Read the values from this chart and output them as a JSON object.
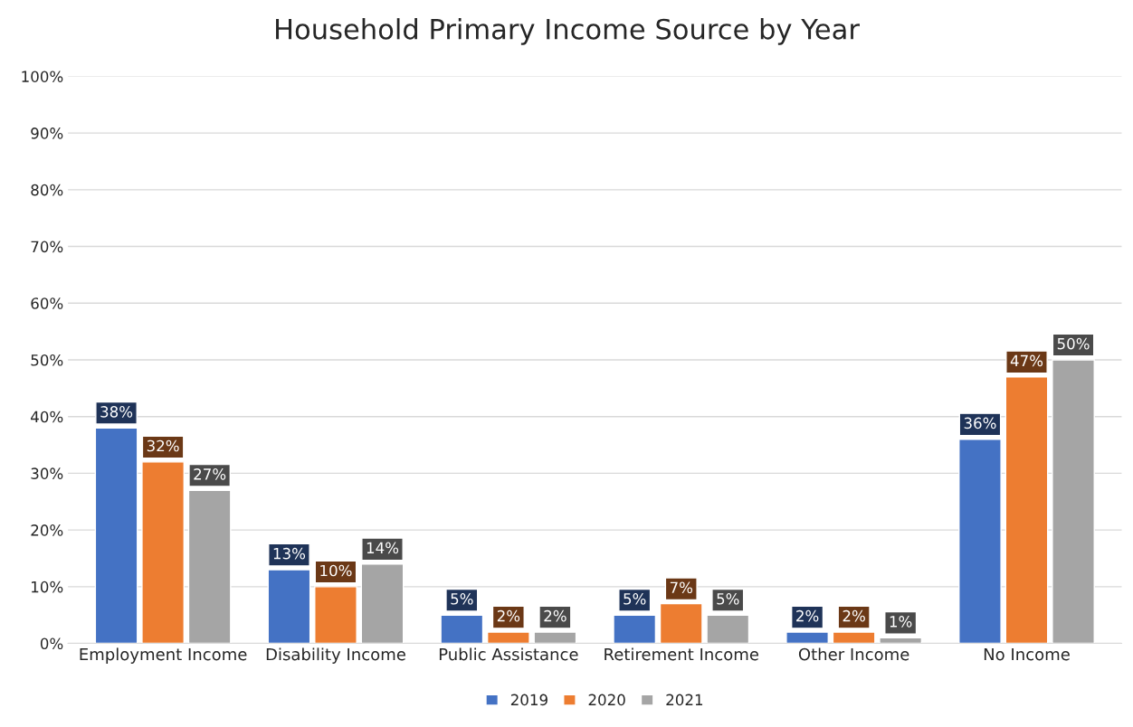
{
  "chart_data": {
    "type": "bar",
    "title": "Household Primary Income Source by Year",
    "categories": [
      "Employment Income",
      "Disability Income",
      "Public Assistance",
      "Retirement Income",
      "Other Income",
      "No Income"
    ],
    "series": [
      {
        "name": "2019",
        "color": "#4472c4",
        "values": [
          38,
          13,
          5,
          5,
          2,
          36
        ],
        "value_labels": [
          "38%",
          "13%",
          "5%",
          "5%",
          "2%",
          "36%"
        ]
      },
      {
        "name": "2020",
        "color": "#ed7d31",
        "values": [
          32,
          10,
          2,
          7,
          2,
          47
        ],
        "value_labels": [
          "32%",
          "10%",
          "2%",
          "7%",
          "2%",
          "47%"
        ]
      },
      {
        "name": "2021",
        "color": "#a5a5a5",
        "values": [
          27,
          14,
          2,
          5,
          1,
          50
        ],
        "value_labels": [
          "27%",
          "14%",
          "2%",
          "5%",
          "1%",
          "50%"
        ]
      }
    ],
    "ylim": [
      0,
      100
    ],
    "yticks": [
      {
        "value": 0,
        "label": "0%"
      },
      {
        "value": 10,
        "label": "10%"
      },
      {
        "value": 20,
        "label": "20%"
      },
      {
        "value": 30,
        "label": "30%"
      },
      {
        "value": 40,
        "label": "40%"
      },
      {
        "value": 50,
        "label": "50%"
      },
      {
        "value": 60,
        "label": "60%"
      },
      {
        "value": 70,
        "label": "70%"
      },
      {
        "value": 80,
        "label": "80%"
      },
      {
        "value": 90,
        "label": "90%"
      },
      {
        "value": 100,
        "label": "100%"
      }
    ],
    "grid": "y",
    "legend": "bottom"
  }
}
